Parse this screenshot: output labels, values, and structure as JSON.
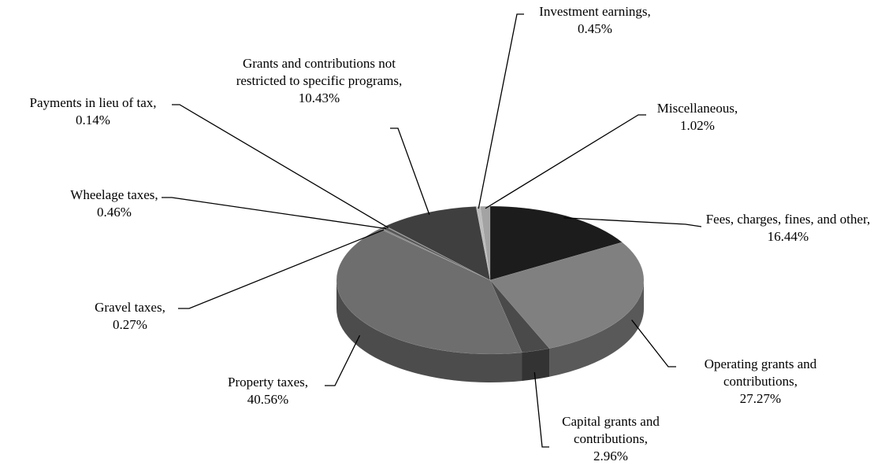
{
  "chart_data": {
    "type": "pie3d",
    "categories": [
      "Fees, charges, fines, and other,",
      "Operating grants and contributions,",
      "Capital grants and contributions,",
      "Property taxes,",
      "Gravel taxes,",
      "Wheelage taxes,",
      "Payments in lieu of tax,",
      "Grants and contributions not restricted to specific programs,",
      "Investment earnings,",
      "Miscellaneous,"
    ],
    "values": [
      16.44,
      27.27,
      2.96,
      40.56,
      0.27,
      0.46,
      0.14,
      10.43,
      0.45,
      1.02
    ],
    "value_labels": [
      "16.44%",
      "27.27%",
      "2.96%",
      "40.56%",
      "0.27%",
      "0.46%",
      "0.14%",
      "10.43%",
      "0.45%",
      "1.02%"
    ],
    "colors": [
      "#1c1c1c",
      "#808080",
      "#4a4a4a",
      "#6e6e6e",
      "#8c8c8c",
      "#575757",
      "#9a9a9a",
      "#3f3f3f",
      "#bdbdbd",
      "#a3a3a3"
    ]
  }
}
